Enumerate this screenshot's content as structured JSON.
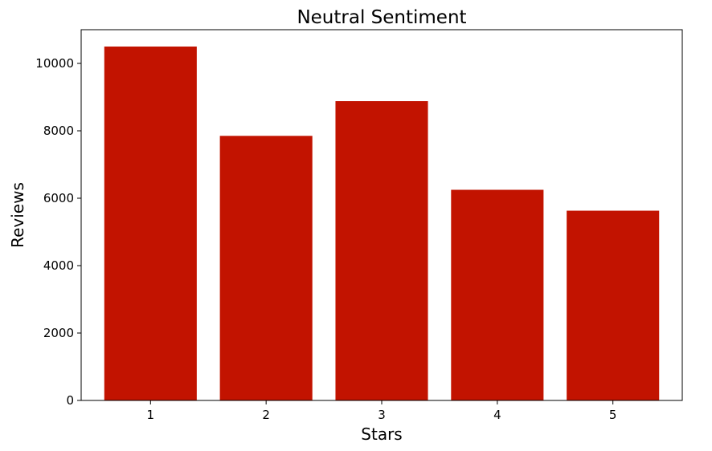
{
  "chart_data": {
    "type": "bar",
    "title": "Neutral Sentiment",
    "xlabel": "Stars",
    "ylabel": "Reviews",
    "categories": [
      "1",
      "2",
      "3",
      "4",
      "5"
    ],
    "values": [
      10500,
      7850,
      8880,
      6250,
      5630
    ],
    "ylim": [
      0,
      11000
    ],
    "yticks": [
      0,
      2000,
      4000,
      6000,
      8000,
      10000
    ],
    "grid": false,
    "legend": "none",
    "bar_color": "#c21300"
  }
}
